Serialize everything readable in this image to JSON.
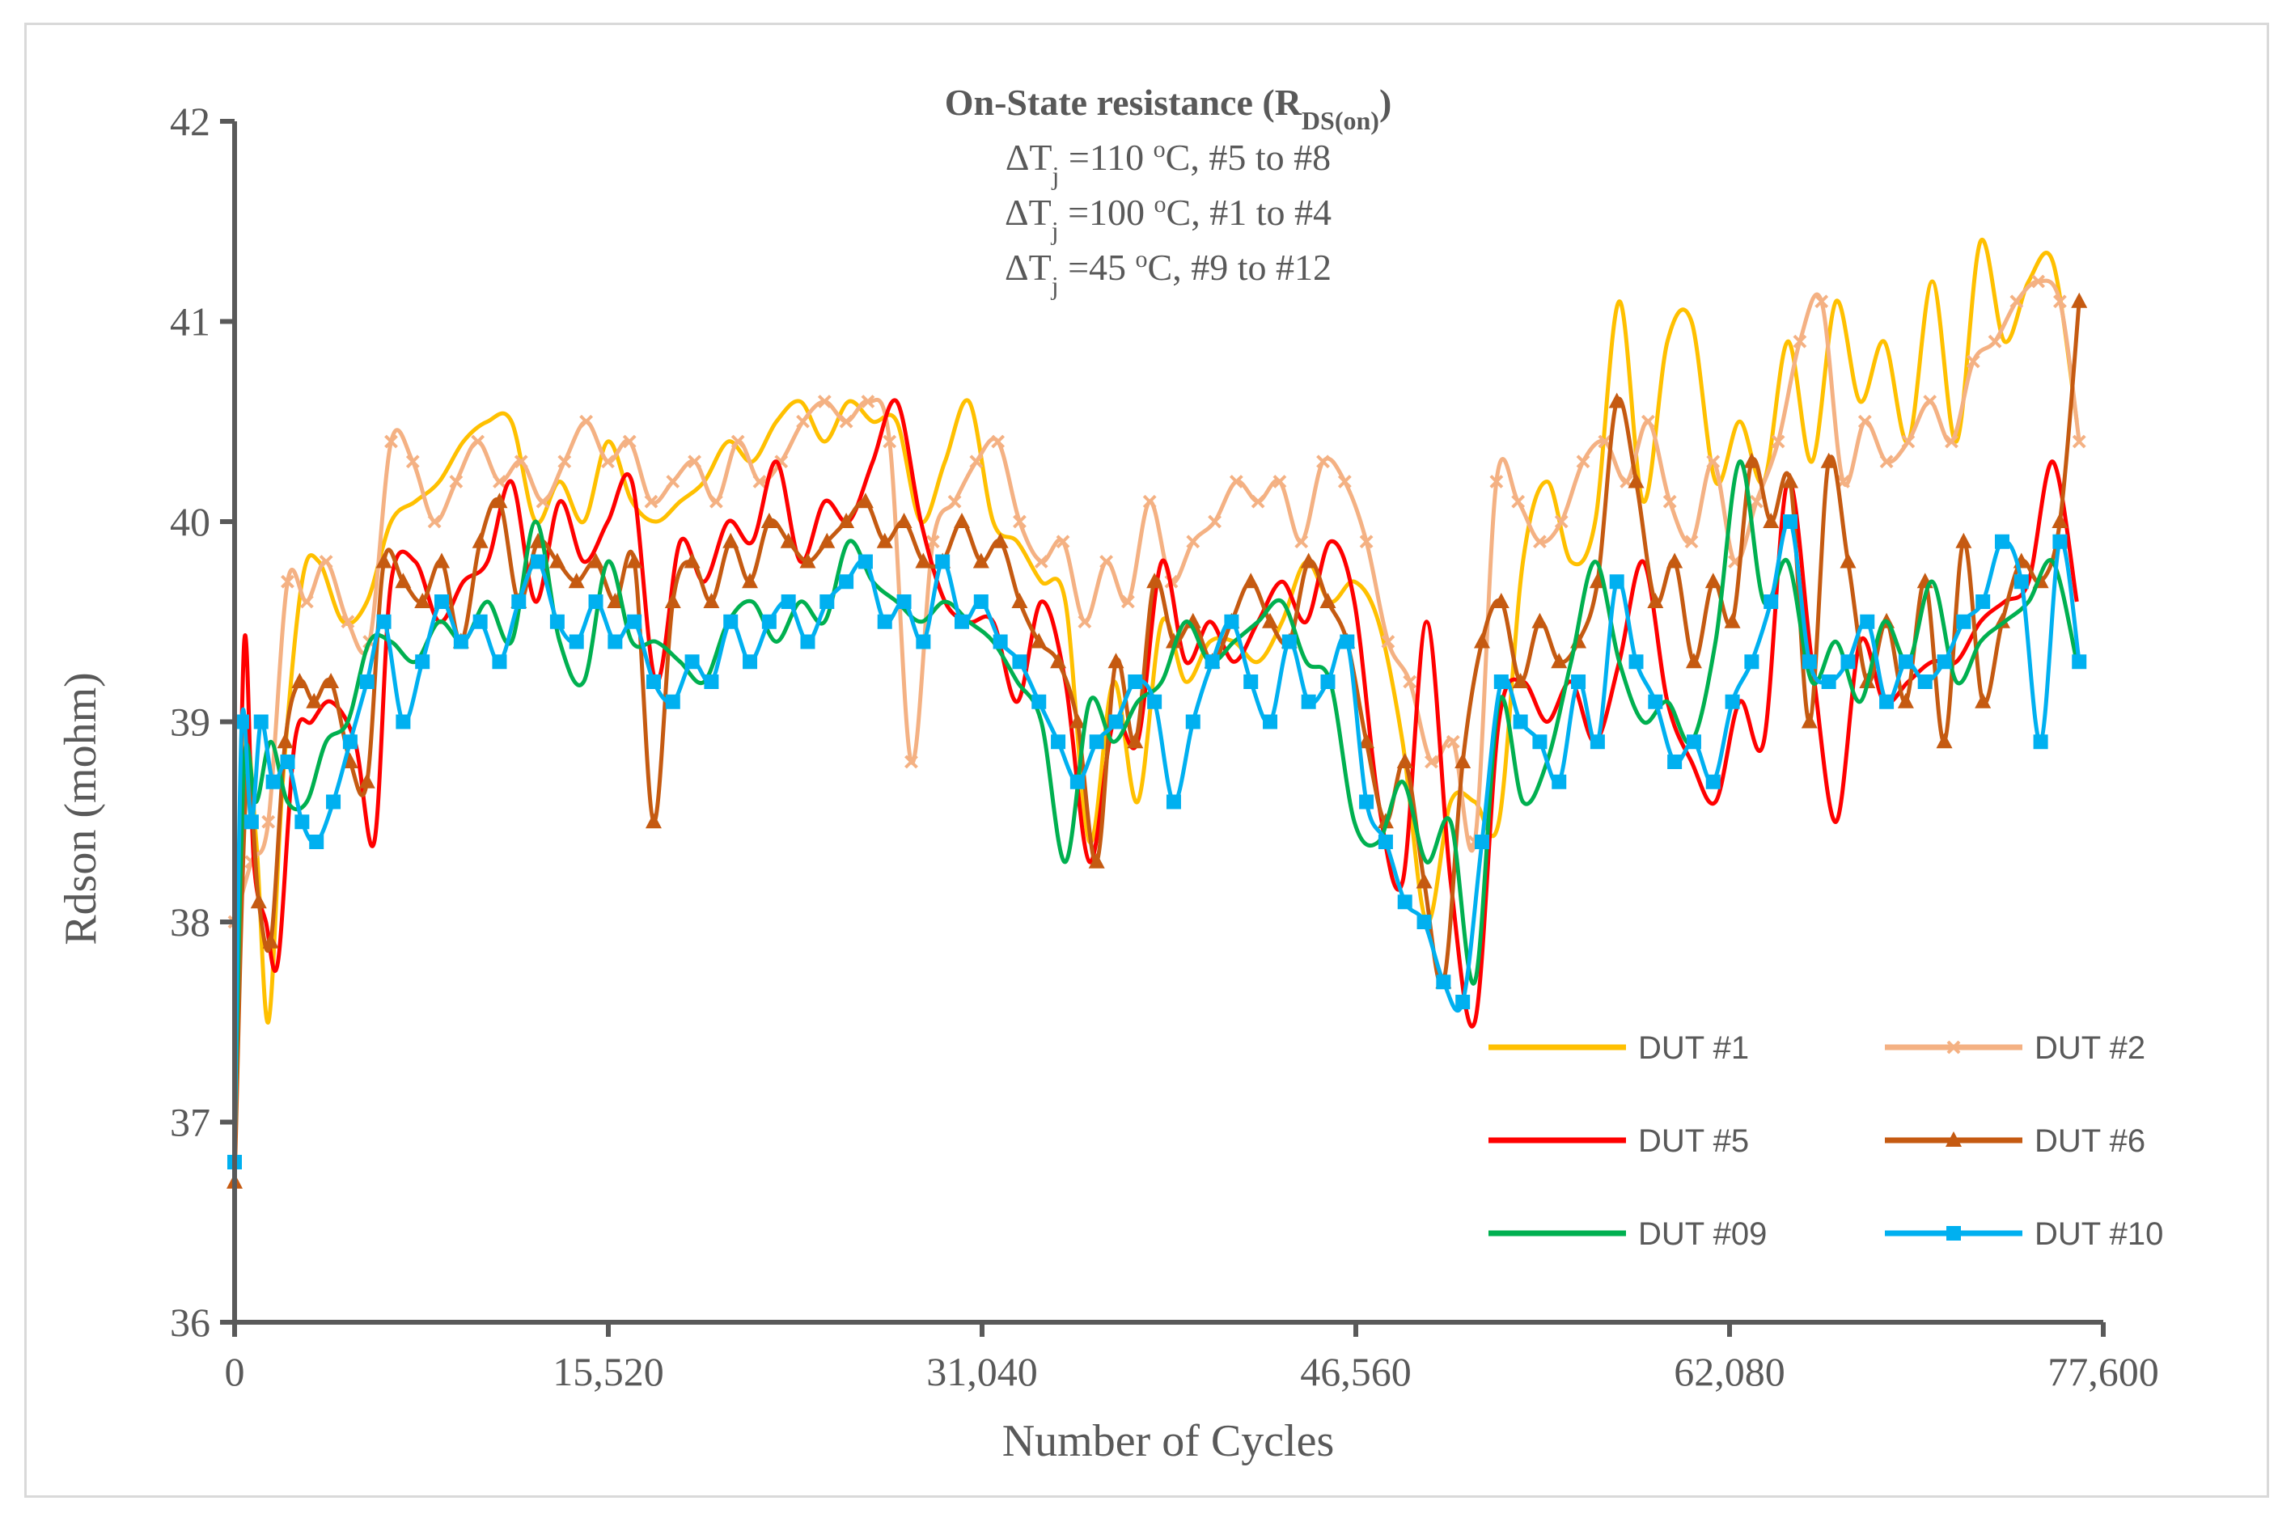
{
  "chart_data": {
    "type": "line",
    "title": {
      "main": "On-State resistance (R",
      "main_sub": "DS(on)",
      "main_end": ")",
      "lines": [
        {
          "pre": "ΔT",
          "sub": "j",
          "mid": " =110 ",
          "sup": "o",
          "post": "C, #5 to #8"
        },
        {
          "pre": "ΔT",
          "sub": "j",
          "mid": " =100 ",
          "sup": "o",
          "post": "C, #1 to #4"
        },
        {
          "pre": "ΔT",
          "sub": "j",
          "mid": " =45 ",
          "sup": "o",
          "post": "C, #9 to #12"
        }
      ]
    },
    "xlabel": "Number of Cycles",
    "ylabel": "Rdson (mohm)",
    "xlim": [
      0,
      77600
    ],
    "ylim": [
      36,
      42
    ],
    "xticks": [
      0,
      15520,
      31040,
      46560,
      62080,
      77600
    ],
    "xtick_labels": [
      "0",
      "15,520",
      "31,040",
      "46,560",
      "62,080",
      "77,600"
    ],
    "yticks": [
      36,
      37,
      38,
      39,
      40,
      41,
      42
    ],
    "ytick_labels": [
      "36",
      "37",
      "38",
      "39",
      "40",
      "41",
      "42"
    ],
    "series": [
      {
        "name": "DUT #1",
        "color": "#FFC000",
        "marker": "none",
        "x": [
          0,
          400,
          900,
          1400,
          2000,
          2800,
          3500,
          4500,
          5500,
          6500,
          7500,
          8500,
          9500,
          10500,
          11500,
          12500,
          13500,
          14500,
          15500,
          16500,
          17500,
          18500,
          19500,
          20500,
          21500,
          22500,
          23500,
          24500,
          25500,
          26500,
          27500,
          28500,
          29500,
          30500,
          31500,
          32500,
          33500,
          34500,
          35500,
          36500,
          37500,
          38500,
          39500,
          40500,
          41500,
          42500,
          43500,
          44500,
          45500,
          46500,
          47500,
          48500,
          49500,
          50500,
          51500,
          52500,
          53500,
          54500,
          55500,
          56500,
          57500,
          58500,
          59500,
          60500,
          61500,
          62500,
          63500,
          64500,
          65500,
          66500,
          67500,
          68500,
          69500,
          70500,
          71500,
          72500,
          73500,
          74500,
          75500,
          76500
        ],
        "y": [
          36.9,
          38.9,
          38.4,
          37.5,
          38.7,
          39.7,
          39.8,
          39.5,
          39.6,
          40.0,
          40.1,
          40.2,
          40.4,
          40.5,
          40.5,
          40.0,
          40.2,
          40.0,
          40.4,
          40.1,
          40.0,
          40.1,
          40.2,
          40.4,
          40.3,
          40.5,
          40.6,
          40.4,
          40.6,
          40.5,
          40.5,
          40.0,
          40.3,
          40.6,
          40.0,
          39.9,
          39.7,
          39.6,
          38.4,
          39.2,
          38.6,
          39.5,
          39.2,
          39.4,
          39.4,
          39.3,
          39.5,
          39.8,
          39.6,
          39.7,
          39.5,
          38.9,
          38.0,
          38.6,
          38.6,
          38.5,
          39.8,
          40.2,
          39.8,
          40.0,
          41.1,
          40.1,
          40.9,
          41.0,
          40.2,
          40.5,
          40.2,
          40.9,
          40.3,
          41.1,
          40.6,
          40.9,
          40.4,
          41.2,
          40.4,
          41.4,
          40.9,
          41.2,
          41.3,
          40.5
        ],
        "stroke_width": 5
      },
      {
        "name": "DUT #2",
        "color": "#F4B183",
        "marker": "x",
        "x": [
          0,
          700,
          1400,
          2200,
          3000,
          3800,
          4700,
          5600,
          6500,
          7400,
          8300,
          9200,
          10100,
          11000,
          11900,
          12800,
          13700,
          14600,
          15500,
          16400,
          17300,
          18200,
          19100,
          20000,
          20900,
          21800,
          22700,
          23600,
          24500,
          25400,
          26300,
          27200,
          28100,
          29000,
          29900,
          30800,
          31700,
          32600,
          33500,
          34400,
          35300,
          36200,
          37100,
          38000,
          38900,
          39800,
          40700,
          41600,
          42500,
          43400,
          44300,
          45200,
          46100,
          47000,
          47900,
          48800,
          49700,
          50600,
          51500,
          52400,
          53300,
          54200,
          55100,
          56000,
          56900,
          57800,
          58700,
          59600,
          60500,
          61400,
          62300,
          63200,
          64100,
          65000,
          65900,
          66800,
          67700,
          68600,
          69500,
          70400,
          71300,
          72200,
          73100,
          74000,
          74900,
          75800,
          76600
        ],
        "y": [
          38.0,
          38.3,
          38.5,
          39.7,
          39.6,
          39.8,
          39.5,
          39.4,
          40.4,
          40.3,
          40.0,
          40.2,
          40.4,
          40.2,
          40.3,
          40.1,
          40.3,
          40.5,
          40.3,
          40.4,
          40.1,
          40.2,
          40.3,
          40.1,
          40.4,
          40.2,
          40.3,
          40.5,
          40.6,
          40.5,
          40.6,
          40.4,
          38.8,
          39.9,
          40.1,
          40.3,
          40.4,
          40.0,
          39.8,
          39.9,
          39.5,
          39.8,
          39.6,
          40.1,
          39.7,
          39.9,
          40.0,
          40.2,
          40.1,
          40.2,
          39.9,
          40.3,
          40.2,
          39.9,
          39.4,
          39.2,
          38.8,
          38.9,
          38.4,
          40.2,
          40.1,
          39.9,
          40.0,
          40.3,
          40.4,
          40.2,
          40.5,
          40.1,
          39.9,
          40.3,
          39.8,
          40.1,
          40.4,
          40.9,
          41.1,
          40.2,
          40.5,
          40.3,
          40.4,
          40.6,
          40.4,
          40.8,
          40.9,
          41.1,
          41.2,
          41.1,
          40.4
        ],
        "stroke_width": 5
      },
      {
        "name": "DUT #5",
        "color": "#FF0000",
        "marker": "none",
        "x": [
          0,
          400,
          800,
          1300,
          1800,
          2500,
          3200,
          4000,
          5000,
          5800,
          6500,
          7500,
          8500,
          9500,
          10500,
          11500,
          12500,
          13500,
          14500,
          15500,
          16500,
          17500,
          18500,
          19500,
          20500,
          21500,
          22500,
          23500,
          24500,
          25500,
          26500,
          27500,
          28500,
          29500,
          30500,
          31500,
          32500,
          33500,
          34500,
          35500,
          36500,
          37500,
          38500,
          39500,
          40500,
          41500,
          42500,
          43500,
          44500,
          45500,
          46500,
          47500,
          48500,
          49500,
          50500,
          51500,
          52500,
          53500,
          54500,
          55500,
          56500,
          57500,
          58500,
          59500,
          60500,
          61500,
          62500,
          63500,
          64500,
          65500,
          66500,
          67500,
          68500,
          69500,
          70500,
          71500,
          72500,
          73500,
          74500,
          75500,
          76500
        ],
        "y": [
          36.9,
          39.4,
          38.3,
          38.0,
          37.8,
          38.9,
          39.0,
          39.1,
          38.9,
          38.4,
          39.7,
          39.8,
          39.5,
          39.7,
          39.8,
          40.2,
          39.6,
          40.1,
          39.8,
          40.0,
          40.2,
          39.2,
          39.9,
          39.7,
          40.0,
          39.9,
          40.3,
          39.8,
          40.1,
          40.0,
          40.3,
          40.6,
          40.0,
          39.6,
          39.5,
          39.5,
          39.1,
          39.6,
          39.2,
          38.3,
          39.0,
          38.9,
          39.8,
          39.3,
          39.5,
          39.3,
          39.5,
          39.7,
          39.5,
          39.9,
          39.6,
          38.6,
          38.2,
          39.5,
          38.2,
          37.5,
          39.0,
          39.2,
          39.0,
          39.2,
          38.9,
          39.3,
          39.8,
          39.1,
          38.8,
          38.6,
          39.1,
          38.9,
          40.2,
          39.3,
          38.5,
          39.4,
          39.1,
          39.2,
          39.3,
          39.3,
          39.5,
          39.6,
          39.7,
          40.3,
          39.6
        ],
        "stroke_width": 5
      },
      {
        "name": "DUT #6",
        "color": "#C55A11",
        "marker": "triangle",
        "x": [
          0,
          500,
          1000,
          1500,
          2100,
          2700,
          3300,
          4000,
          4800,
          5500,
          6200,
          7000,
          7800,
          8600,
          9400,
          10200,
          11000,
          11800,
          12600,
          13400,
          14200,
          15000,
          15800,
          16600,
          17400,
          18200,
          19000,
          19800,
          20600,
          21400,
          22200,
          23000,
          23800,
          24600,
          25400,
          26200,
          27000,
          27800,
          28600,
          29400,
          30200,
          31000,
          31800,
          32600,
          33400,
          34200,
          35000,
          35800,
          36600,
          37400,
          38200,
          39000,
          39800,
          40600,
          41400,
          42200,
          43000,
          43800,
          44600,
          45400,
          46200,
          47000,
          47800,
          48600,
          49400,
          50200,
          51000,
          51800,
          52600,
          53400,
          54200,
          55000,
          55800,
          56600,
          57400,
          58200,
          59000,
          59800,
          60600,
          61400,
          62200,
          63000,
          63800,
          64600,
          65400,
          66200,
          67000,
          67800,
          68600,
          69400,
          70200,
          71000,
          71800,
          72600,
          73400,
          74200,
          75000,
          75800,
          76600
        ],
        "y": [
          36.7,
          38.7,
          38.1,
          37.9,
          38.9,
          39.2,
          39.1,
          39.2,
          38.8,
          38.7,
          39.8,
          39.7,
          39.6,
          39.8,
          39.4,
          39.9,
          40.1,
          39.6,
          39.9,
          39.8,
          39.7,
          39.8,
          39.6,
          39.8,
          38.5,
          39.6,
          39.8,
          39.6,
          39.9,
          39.7,
          40.0,
          39.9,
          39.8,
          39.9,
          40.0,
          40.1,
          39.9,
          40.0,
          39.8,
          39.8,
          40.0,
          39.8,
          39.9,
          39.6,
          39.4,
          39.3,
          39.0,
          38.3,
          39.3,
          38.9,
          39.7,
          39.4,
          39.5,
          39.3,
          39.5,
          39.7,
          39.5,
          39.4,
          39.8,
          39.6,
          39.4,
          38.9,
          38.5,
          38.8,
          38.2,
          37.7,
          38.8,
          39.4,
          39.6,
          39.2,
          39.5,
          39.3,
          39.4,
          39.7,
          40.6,
          40.2,
          39.6,
          39.8,
          39.3,
          39.7,
          39.5,
          40.3,
          40.0,
          40.2,
          39.0,
          40.3,
          39.8,
          39.2,
          39.5,
          39.1,
          39.7,
          38.9,
          39.9,
          39.1,
          39.5,
          39.8,
          39.7,
          40.0,
          41.1
        ],
        "stroke_width": 5
      },
      {
        "name": "DUT #09",
        "color": "#00B050",
        "marker": "none",
        "x": [
          0,
          400,
          900,
          1500,
          2200,
          3000,
          3800,
          4700,
          5600,
          6500,
          7500,
          8500,
          9500,
          10500,
          11500,
          12500,
          13500,
          14500,
          15500,
          16500,
          17500,
          18500,
          19500,
          20500,
          21500,
          22500,
          23500,
          24500,
          25500,
          26500,
          27500,
          28500,
          29500,
          30500,
          31500,
          32500,
          33500,
          34500,
          35500,
          36500,
          37500,
          38500,
          39500,
          40500,
          41500,
          42500,
          43500,
          44500,
          45500,
          46500,
          47500,
          48500,
          49500,
          50500,
          51500,
          52500,
          53500,
          54500,
          55500,
          56500,
          57500,
          58500,
          59500,
          60500,
          61500,
          62500,
          63500,
          64500,
          65500,
          66500,
          67500,
          68500,
          69500,
          70500,
          71500,
          72500,
          73500,
          74500,
          75500,
          76500
        ],
        "y": [
          36.9,
          38.8,
          38.6,
          38.9,
          38.6,
          38.6,
          38.9,
          39.0,
          39.4,
          39.4,
          39.3,
          39.5,
          39.4,
          39.6,
          39.4,
          40.0,
          39.4,
          39.2,
          39.8,
          39.4,
          39.4,
          39.3,
          39.2,
          39.5,
          39.6,
          39.4,
          39.6,
          39.5,
          39.9,
          39.7,
          39.6,
          39.5,
          39.6,
          39.5,
          39.4,
          39.2,
          39.0,
          38.3,
          39.1,
          38.9,
          39.1,
          39.2,
          39.5,
          39.3,
          39.4,
          39.5,
          39.6,
          39.3,
          39.2,
          38.5,
          38.4,
          38.7,
          38.3,
          38.5,
          37.7,
          39.1,
          38.6,
          38.8,
          39.3,
          39.8,
          39.3,
          39.0,
          39.1,
          38.9,
          39.4,
          40.3,
          39.6,
          39.8,
          39.2,
          39.4,
          39.1,
          39.5,
          39.3,
          39.7,
          39.2,
          39.4,
          39.5,
          39.6,
          39.8,
          39.3
        ],
        "stroke_width": 5
      },
      {
        "name": "DUT #10",
        "color": "#00B0F0",
        "marker": "square",
        "x": [
          0,
          300,
          700,
          1100,
          1600,
          2200,
          2800,
          3400,
          4100,
          4800,
          5500,
          6200,
          7000,
          7800,
          8600,
          9400,
          10200,
          11000,
          11800,
          12600,
          13400,
          14200,
          15000,
          15800,
          16600,
          17400,
          18200,
          19000,
          19800,
          20600,
          21400,
          22200,
          23000,
          23800,
          24600,
          25400,
          26200,
          27000,
          27800,
          28600,
          29400,
          30200,
          31000,
          31800,
          32600,
          33400,
          34200,
          35000,
          35800,
          36600,
          37400,
          38200,
          39000,
          39800,
          40600,
          41400,
          42200,
          43000,
          43800,
          44600,
          45400,
          46200,
          47000,
          47800,
          48600,
          49400,
          50200,
          51000,
          51800,
          52600,
          53400,
          54200,
          55000,
          55800,
          56600,
          57400,
          58200,
          59000,
          59800,
          60600,
          61400,
          62200,
          63000,
          63800,
          64600,
          65400,
          66200,
          67000,
          67800,
          68600,
          69400,
          70200,
          71000,
          71800,
          72600,
          73400,
          74200,
          75000,
          75800,
          76600
        ],
        "y": [
          36.8,
          39.0,
          38.5,
          39.0,
          38.7,
          38.8,
          38.5,
          38.4,
          38.6,
          38.9,
          39.2,
          39.5,
          39.0,
          39.3,
          39.6,
          39.4,
          39.5,
          39.3,
          39.6,
          39.8,
          39.5,
          39.4,
          39.6,
          39.4,
          39.5,
          39.2,
          39.1,
          39.3,
          39.2,
          39.5,
          39.3,
          39.5,
          39.6,
          39.4,
          39.6,
          39.7,
          39.8,
          39.5,
          39.6,
          39.4,
          39.8,
          39.5,
          39.6,
          39.4,
          39.3,
          39.1,
          38.9,
          38.7,
          38.9,
          39.0,
          39.2,
          39.1,
          38.6,
          39.0,
          39.3,
          39.5,
          39.2,
          39.0,
          39.4,
          39.1,
          39.2,
          39.4,
          38.6,
          38.4,
          38.1,
          38.0,
          37.7,
          37.6,
          38.4,
          39.2,
          39.0,
          38.9,
          38.7,
          39.2,
          38.9,
          39.7,
          39.3,
          39.1,
          38.8,
          38.9,
          38.7,
          39.1,
          39.3,
          39.6,
          40.0,
          39.3,
          39.2,
          39.3,
          39.5,
          39.1,
          39.3,
          39.2,
          39.3,
          39.5,
          39.6,
          39.9,
          39.7,
          38.9,
          39.9,
          39.3
        ],
        "stroke_width": 5
      }
    ],
    "legend": {
      "placement": "bottom-right",
      "columns": 2
    }
  }
}
